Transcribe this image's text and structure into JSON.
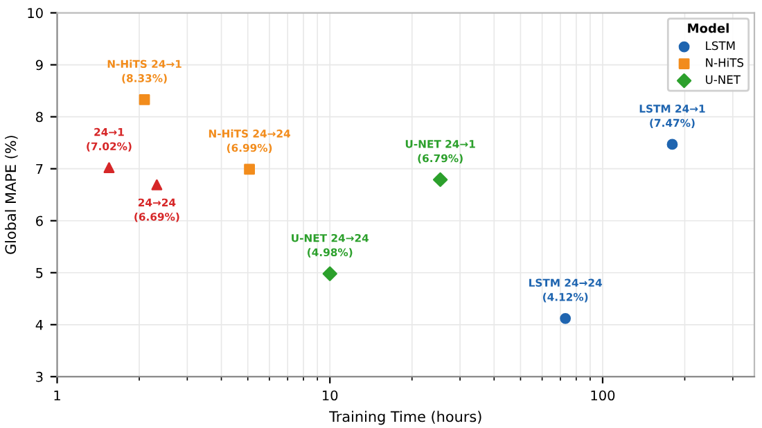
{
  "chart_data": {
    "type": "scatter",
    "xlabel": "Training Time (hours)",
    "ylabel": "Global MAPE (%)",
    "log": "x",
    "xlim": [
      1,
      360
    ],
    "xticks": [
      1,
      10,
      100
    ],
    "ylim": [
      3,
      10
    ],
    "yticks": [
      3,
      4,
      5,
      6,
      7,
      8,
      9,
      10
    ],
    "grid": true,
    "legend": "top right",
    "legend_title": "Model",
    "series": [
      {
        "name": "LSTM",
        "color": "#1f65b0",
        "marker": "circle",
        "x": [
          180,
          73
        ],
        "values": [
          7.47,
          4.12
        ],
        "value_labels": [
          "LSTM 24→1\n(7.47%)",
          "LSTM 24→24\n(4.12%)"
        ]
      },
      {
        "name": "N-HiTS",
        "color": "#f28c1c",
        "marker": "square",
        "x": [
          2.09,
          5.07
        ],
        "values": [
          8.33,
          6.99
        ],
        "value_labels": [
          "N-HiTS 24→1\n(8.33%)",
          "N-HiTS 24→24\n(6.99%)"
        ]
      },
      {
        "name": "U-NET",
        "color": "#2ca02c",
        "marker": "diamond",
        "x": [
          25.4,
          10
        ],
        "values": [
          6.79,
          4.98
        ],
        "value_labels": [
          "U-NET 24→1\n(6.79%)",
          "U-NET 24→24\n(4.98%)"
        ]
      },
      {
        "color": "#d62728",
        "marker": "triangle",
        "x": [
          1.55,
          2.32
        ],
        "values": [
          7.02,
          6.69
        ],
        "value_labels": [
          "24→1\n(7.02%)",
          "24→24\n(6.69%)"
        ]
      }
    ]
  }
}
